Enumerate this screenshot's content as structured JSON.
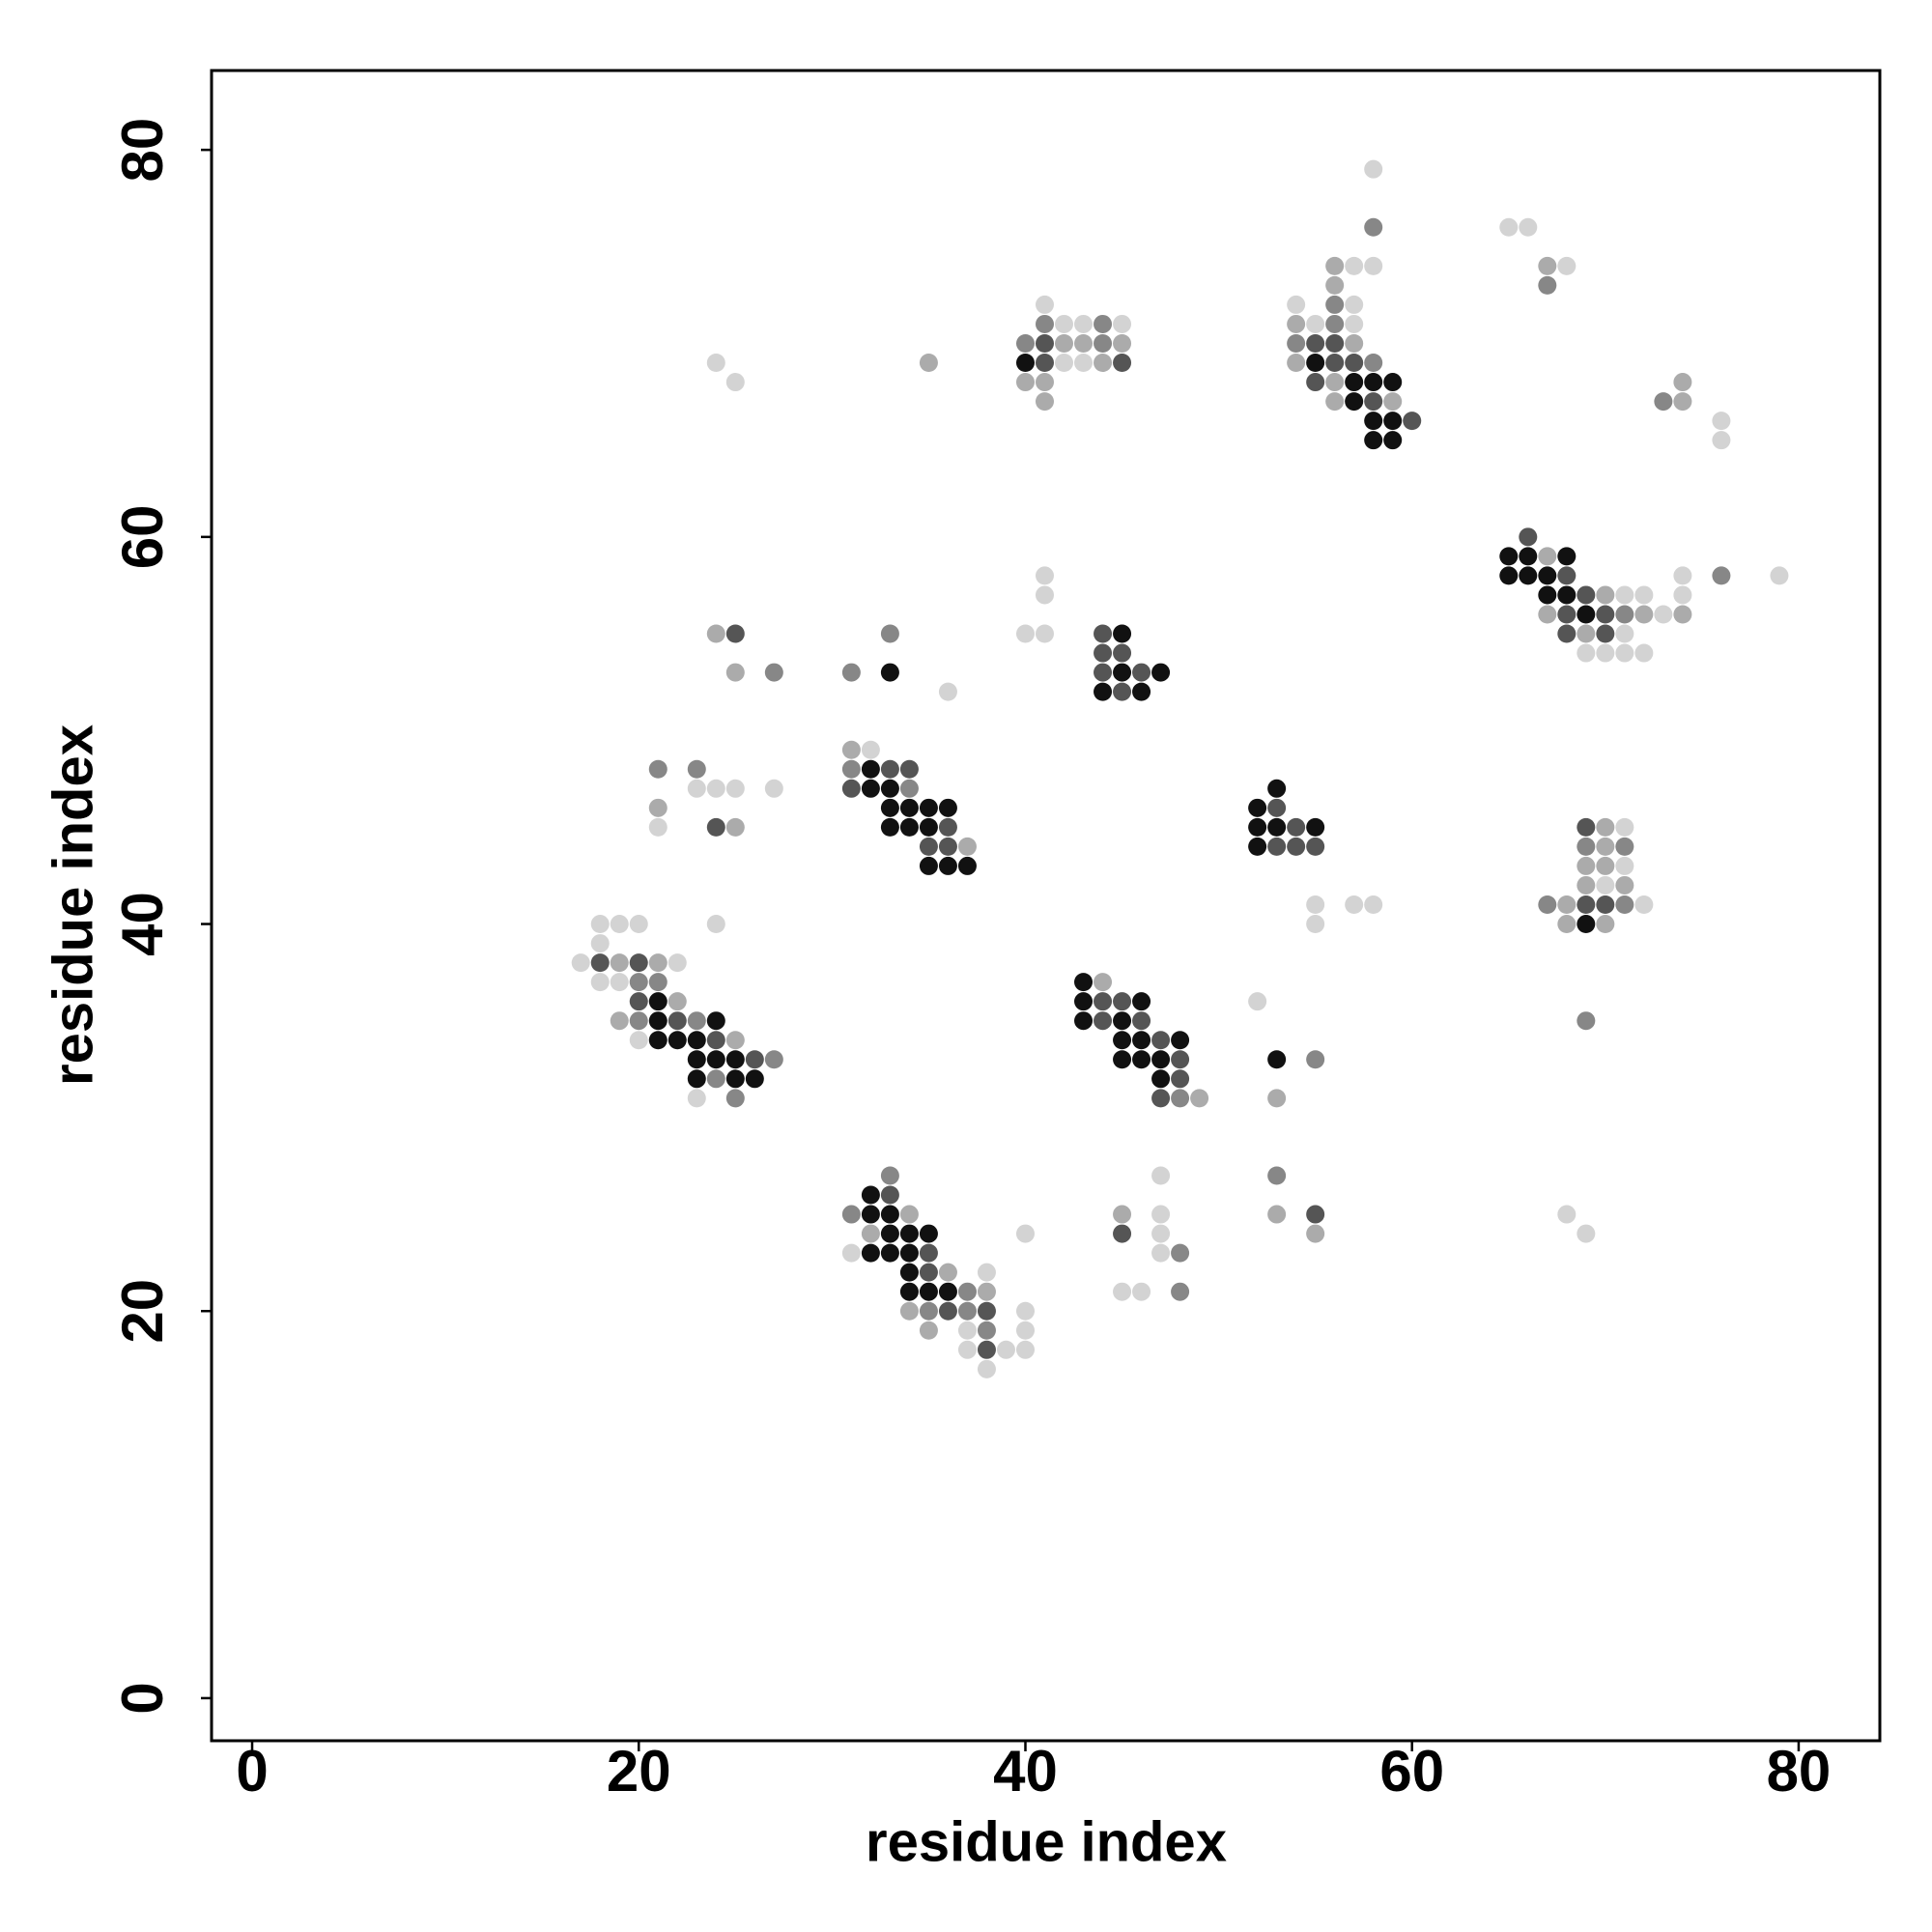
{
  "chart_data": {
    "type": "scatter",
    "x_label": "residue index",
    "y_label": "residue index",
    "xlim": [
      -2.1,
      84.2
    ],
    "ylim": [
      -2.2,
      84.1
    ],
    "xticks": [
      0,
      20,
      40,
      60,
      80
    ],
    "yticks": [
      0,
      20,
      40,
      60,
      80
    ],
    "series": [
      {
        "color": "#d3d3d3",
        "x": [
          40,
          31,
          38,
          40,
          37,
          40,
          37,
          39,
          40,
          38,
          47,
          47,
          47,
          47,
          45,
          46,
          18,
          19,
          20,
          24,
          18,
          17,
          22,
          18,
          19,
          20,
          23,
          52,
          23,
          24,
          25,
          27,
          21,
          32,
          36,
          41,
          41,
          40,
          41,
          55,
          57,
          58,
          55,
          71,
          71,
          70,
          72,
          74,
          79,
          71,
          72,
          74,
          73,
          71,
          69,
          70,
          71,
          72,
          41,
          42,
          43,
          45,
          42,
          43,
          24,
          25,
          58,
          57,
          58,
          54,
          57,
          55,
          57,
          65,
          66,
          68,
          76,
          76,
          68,
          69
        ],
        "y": [
          24,
          23,
          22,
          20,
          19,
          19,
          18,
          18,
          18,
          17,
          27,
          25,
          24,
          23,
          21,
          21,
          40,
          40,
          40,
          40,
          39,
          38,
          38,
          37,
          37,
          34,
          31,
          36,
          47,
          47,
          47,
          47,
          45,
          49,
          52,
          58,
          57,
          55,
          55,
          41,
          41,
          41,
          40,
          45,
          43,
          42,
          41,
          58,
          58,
          57,
          57,
          57,
          56,
          55,
          54,
          54,
          54,
          54,
          72,
          71,
          71,
          71,
          69,
          69,
          69,
          68,
          79,
          74,
          74,
          72,
          72,
          71,
          71,
          76,
          76,
          74,
          66,
          65,
          25,
          24
        ]
      },
      {
        "color": "#ababab",
        "x": [
          34,
          32,
          36,
          38,
          34,
          35,
          45,
          53,
          55,
          19,
          21,
          22,
          19,
          25,
          44,
          49,
          53,
          21,
          25,
          31,
          37,
          24,
          25,
          70,
          70,
          69,
          70,
          69,
          71,
          68,
          68,
          70,
          67,
          70,
          67,
          72,
          74,
          69,
          42,
          43,
          45,
          44,
          40,
          41,
          41,
          35,
          56,
          56,
          54,
          54,
          56,
          57,
          56,
          59,
          67,
          74,
          74
        ],
        "y": [
          25,
          24,
          22,
          21,
          20,
          19,
          25,
          25,
          24,
          38,
          38,
          36,
          35,
          34,
          37,
          31,
          31,
          46,
          45,
          49,
          44,
          55,
          53,
          45,
          44,
          43,
          43,
          42,
          42,
          41,
          40,
          40,
          59,
          57,
          56,
          56,
          56,
          55,
          70,
          70,
          70,
          69,
          68,
          68,
          67,
          69,
          74,
          73,
          71,
          69,
          68,
          70,
          67,
          67,
          74,
          68,
          67
        ]
      },
      {
        "color": "#878787",
        "x": [
          33,
          31,
          37,
          35,
          37,
          38,
          48,
          48,
          53,
          20,
          21,
          20,
          23,
          27,
          24,
          25,
          48,
          55,
          69,
          21,
          23,
          31,
          34,
          33,
          27,
          31,
          69,
          71,
          67,
          71,
          76,
          71,
          41,
          44,
          40,
          44,
          58,
          56,
          56,
          54,
          58,
          67,
          73
        ],
        "y": [
          27,
          25,
          21,
          20,
          20,
          19,
          23,
          21,
          27,
          37,
          37,
          35,
          35,
          33,
          32,
          31,
          31,
          33,
          35,
          48,
          48,
          48,
          47,
          55,
          53,
          53,
          44,
          44,
          41,
          41,
          58,
          56,
          71,
          71,
          70,
          70,
          76,
          72,
          71,
          70,
          69,
          73,
          67
        ]
      },
      {
        "color": "#555555",
        "x": [
          33,
          35,
          35,
          36,
          38,
          38,
          45,
          55,
          18,
          20,
          20,
          22,
          24,
          26,
          44,
          45,
          44,
          46,
          47,
          48,
          48,
          47,
          24,
          33,
          34,
          31,
          36,
          35,
          36,
          25,
          44,
          44,
          45,
          44,
          46,
          45,
          53,
          54,
          53,
          54,
          55,
          69,
          69,
          70,
          66,
          68,
          69,
          68,
          70,
          68,
          70,
          41,
          41,
          45,
          55,
          56,
          56,
          57,
          55,
          58,
          60
        ],
        "y": [
          26,
          23,
          22,
          20,
          20,
          18,
          24,
          25,
          38,
          38,
          36,
          35,
          34,
          33,
          36,
          36,
          35,
          35,
          34,
          33,
          32,
          31,
          45,
          48,
          48,
          47,
          45,
          44,
          44,
          55,
          55,
          54,
          54,
          53,
          53,
          52,
          46,
          45,
          44,
          44,
          44,
          45,
          41,
          41,
          60,
          58,
          57,
          56,
          56,
          55,
          55,
          70,
          69,
          69,
          70,
          70,
          69,
          69,
          68,
          67,
          66
        ]
      },
      {
        "color": "#111111",
        "x": [
          32,
          32,
          33,
          33,
          34,
          35,
          32,
          33,
          34,
          34,
          34,
          35,
          36,
          21,
          21,
          24,
          21,
          22,
          23,
          23,
          24,
          25,
          23,
          25,
          26,
          43,
          43,
          46,
          43,
          45,
          45,
          46,
          48,
          45,
          46,
          47,
          47,
          53,
          32,
          32,
          33,
          33,
          34,
          35,
          36,
          33,
          34,
          35,
          35,
          36,
          37,
          33,
          45,
          45,
          47,
          44,
          46,
          53,
          52,
          52,
          53,
          55,
          52,
          69,
          65,
          66,
          68,
          65,
          66,
          67,
          67,
          68,
          69,
          40,
          55,
          57,
          58,
          59,
          57,
          58,
          59,
          58,
          59
        ],
        "y": [
          26,
          25,
          25,
          24,
          24,
          24,
          23,
          23,
          23,
          22,
          21,
          21,
          21,
          36,
          35,
          35,
          34,
          34,
          34,
          33,
          33,
          33,
          32,
          32,
          32,
          37,
          36,
          36,
          35,
          35,
          34,
          34,
          34,
          33,
          33,
          33,
          32,
          33,
          48,
          47,
          47,
          46,
          46,
          46,
          46,
          45,
          45,
          45,
          43,
          43,
          43,
          53,
          55,
          53,
          53,
          52,
          52,
          47,
          46,
          45,
          45,
          45,
          44,
          40,
          59,
          59,
          59,
          58,
          58,
          58,
          57,
          57,
          56,
          69,
          69,
          68,
          68,
          68,
          67,
          66,
          66,
          65,
          65
        ]
      }
    ]
  }
}
